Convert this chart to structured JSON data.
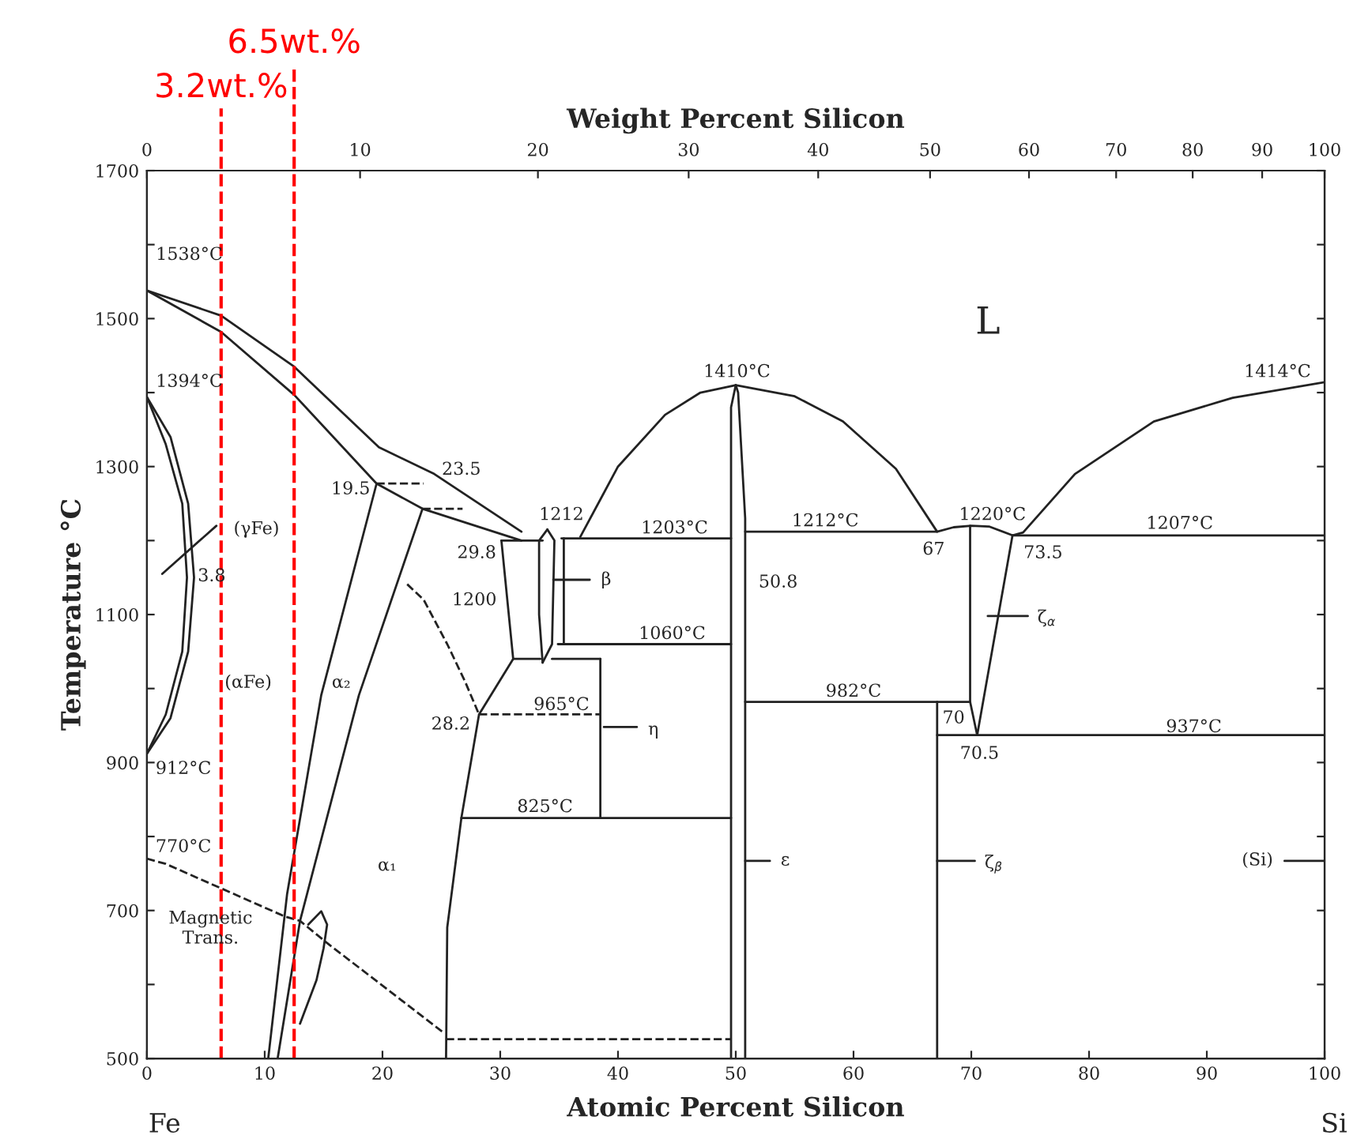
{
  "chart_data": {
    "type": "line",
    "xlabel": "Atomic Percent Silicon",
    "x2label": "Weight Percent Silicon",
    "ylabel": "Temperature °C",
    "xlim": [
      0,
      100
    ],
    "xticks": [
      0,
      10,
      20,
      30,
      40,
      50,
      60,
      70,
      80,
      90,
      100
    ],
    "ylim": [
      500,
      1700
    ],
    "yticks": [
      500,
      {
        "value": 600,
        "label": null
      },
      700,
      {
        "value": 800,
        "label": null
      },
      900,
      {
        "value": 1000,
        "label": null
      },
      1100,
      {
        "value": 1200,
        "label": null
      },
      1300,
      {
        "value": 1400,
        "label": null
      },
      1500,
      {
        "value": 1600,
        "label": null
      },
      1700
    ],
    "grid": false,
    "legend": false,
    "marker": "none",
    "series": [
      {
        "color": "#222222",
        "line_style": "solid",
        "x": [
          0,
          6.3,
          12.5,
          19.7,
          24.4,
          31.8
        ],
        "values": [
          1538,
          1504,
          1435,
          1326,
          1290,
          1212
        ]
      },
      {
        "color": "#222222",
        "line_style": "solid",
        "x": [
          0,
          6.3,
          12.5,
          19.5,
          23.4,
          31.8
        ],
        "values": [
          1538,
          1482,
          1397,
          1277,
          1243,
          1200
        ]
      },
      {
        "color": "#222222",
        "line_style": "solid",
        "x": [
          0,
          2,
          3.5,
          4.0,
          3.5,
          2,
          0
        ],
        "values": [
          1394,
          1340,
          1250,
          1150,
          1050,
          960,
          912
        ]
      },
      {
        "color": "#222222",
        "line_style": "solid",
        "x": [
          0,
          1.6,
          3.0,
          3.4,
          3.0,
          1.6,
          0
        ],
        "values": [
          1394,
          1330,
          1250,
          1150,
          1050,
          965,
          912
        ]
      },
      {
        "color": "#222222",
        "line_style": "solid",
        "x": [
          19.5,
          14.8,
          11.9,
          10.3
        ],
        "values": [
          1277,
          991,
          722,
          500
        ]
      },
      {
        "color": "#222222",
        "line_style": "solid",
        "x": [
          23.4,
          18.0,
          13.0,
          11.1
        ],
        "values": [
          1243,
          991,
          686,
          500
        ]
      },
      {
        "color": "#222222",
        "line_style": "solid",
        "x": [
          13.7,
          14.8,
          15.3,
          15.0,
          14.4,
          13.0
        ],
        "values": [
          681,
          699,
          681,
          649,
          606,
          547
        ]
      },
      {
        "color": "#222222",
        "line_style": "dashed",
        "x": [
          19.5,
          23.5
        ],
        "values": [
          1277,
          1277
        ]
      },
      {
        "color": "#222222",
        "line_style": "dashed",
        "x": [
          23.4,
          26.8
        ],
        "values": [
          1243,
          1243
        ]
      },
      {
        "color": "#222222",
        "line_style": "dashed",
        "x": [
          22.1,
          23.5,
          25.5,
          27.0,
          28.2
        ],
        "values": [
          1141,
          1120,
          1060,
          1010,
          965
        ]
      },
      {
        "color": "#222222",
        "line_style": "solid",
        "x": [
          30.1,
          31.1,
          28.2,
          26.7,
          25.5,
          25.4
        ],
        "values": [
          1200,
          1040,
          965,
          825,
          677,
          500
        ]
      },
      {
        "color": "#222222",
        "line_style": "solid",
        "x": [
          30.1,
          33.6
        ],
        "values": [
          1200,
          1200
        ]
      },
      {
        "color": "#222222",
        "line_style": "solid",
        "x": [
          34.0,
          33.3,
          33.3,
          33.6
        ],
        "values": [
          1215,
          1200,
          1100,
          1035
        ]
      },
      {
        "color": "#222222",
        "line_style": "solid",
        "x": [
          34.0,
          34.6,
          34.4,
          33.6
        ],
        "values": [
          1215,
          1200,
          1060,
          1035
        ]
      },
      {
        "color": "#222222",
        "line_style": "solid",
        "x": [
          35.4,
          35.4
        ],
        "values": [
          1203,
          1060
        ]
      },
      {
        "color": "#222222",
        "line_style": "solid",
        "x": [
          35.2,
          49.6
        ],
        "values": [
          1203,
          1203
        ]
      },
      {
        "color": "#222222",
        "line_style": "solid",
        "x": [
          34.9,
          49.6
        ],
        "values": [
          1060,
          1060
        ]
      },
      {
        "color": "#222222",
        "line_style": "solid",
        "x": [
          31.1,
          33.4
        ],
        "values": [
          1040,
          1040
        ]
      },
      {
        "color": "#222222",
        "line_style": "solid",
        "x": [
          34.4,
          38.5
        ],
        "values": [
          1040,
          1040
        ]
      },
      {
        "color": "#222222",
        "line_style": "solid",
        "x": [
          38.5,
          38.5
        ],
        "values": [
          1040,
          825
        ]
      },
      {
        "color": "#222222",
        "line_style": "dashed",
        "x": [
          28.2,
          38.5
        ],
        "values": [
          965,
          965
        ]
      },
      {
        "color": "#222222",
        "line_style": "solid",
        "x": [
          26.7,
          49.6
        ],
        "values": [
          825,
          825
        ]
      },
      {
        "color": "#222222",
        "line_style": "dashed",
        "x": [
          0,
          1.6,
          11.7,
          13.0,
          15.3,
          25.1
        ],
        "values": [
          770,
          763,
          692,
          686,
          656,
          536
        ]
      },
      {
        "color": "#222222",
        "line_style": "dashed",
        "x": [
          25.4,
          49.6
        ],
        "values": [
          526,
          526
        ]
      },
      {
        "color": "#222222",
        "line_style": "solid",
        "x": [
          49.6,
          49.6,
          50.0
        ],
        "values": [
          500,
          1380,
          1410
        ]
      },
      {
        "color": "#222222",
        "line_style": "solid",
        "x": [
          50.8,
          50.8,
          50.2,
          50.0
        ],
        "values": [
          500,
          1230,
          1400,
          1410
        ]
      },
      {
        "color": "#222222",
        "line_style": "solid",
        "x": [
          36.8,
          40,
          44,
          47,
          50,
          55,
          59.1,
          63.6,
          67.1
        ],
        "values": [
          1205,
          1300,
          1370,
          1400,
          1410,
          1395,
          1361,
          1297,
          1212
        ]
      },
      {
        "color": "#222222",
        "line_style": "solid",
        "x": [
          50.8,
          67.1,
          68.5,
          70,
          71.5,
          73.5,
          100
        ],
        "values": [
          1212,
          1212,
          1218,
          1220,
          1219,
          1207,
          1207
        ]
      },
      {
        "color": "#222222",
        "line_style": "solid",
        "x": [
          69.9,
          69.9,
          70.5,
          73.5
        ],
        "values": [
          1220,
          982,
          937,
          1207
        ]
      },
      {
        "color": "#222222",
        "line_style": "solid",
        "x": [
          50.8,
          69.9
        ],
        "values": [
          982,
          982
        ]
      },
      {
        "color": "#222222",
        "line_style": "solid",
        "x": [
          67.1,
          67.1
        ],
        "values": [
          982,
          500
        ]
      },
      {
        "color": "#222222",
        "line_style": "solid",
        "x": [
          67.1,
          100
        ],
        "values": [
          937,
          937
        ]
      },
      {
        "color": "#222222",
        "line_style": "solid",
        "x": [
          73.5,
          74.4,
          78.8,
          85.5,
          92.2,
          100
        ],
        "values": [
          1207,
          1211,
          1290,
          1361,
          1393,
          1414
        ]
      },
      {
        "color": "#222222",
        "line_style": "solid",
        "x": [
          1.3,
          5.9
        ],
        "values": [
          1155,
          1220
        ]
      },
      {
        "color": "#222222",
        "line_style": "solid",
        "x": [
          34.5,
          37.6
        ],
        "values": [
          1147,
          1147
        ]
      },
      {
        "color": "#222222",
        "line_style": "solid",
        "x": [
          38.8,
          41.6
        ],
        "values": [
          948,
          948
        ]
      },
      {
        "color": "#222222",
        "line_style": "solid",
        "x": [
          50.8,
          52.9
        ],
        "values": [
          767,
          767
        ]
      },
      {
        "color": "#222222",
        "line_style": "solid",
        "x": [
          71.4,
          74.8
        ],
        "values": [
          1098,
          1098
        ]
      },
      {
        "color": "#222222",
        "line_style": "solid",
        "x": [
          67.1,
          70.3
        ],
        "values": [
          767,
          767
        ]
      },
      {
        "color": "#222222",
        "line_style": "solid",
        "x": [
          96.6,
          100
        ],
        "values": [
          767,
          767
        ]
      }
    ],
    "ref_lines": [
      {
        "axis": "x",
        "value": 6.3,
        "label": "3.2wt.%",
        "color": "#ff0000",
        "line_style": "dashed"
      },
      {
        "axis": "x",
        "value": 12.5,
        "label": "6.5wt.%",
        "color": "#ff0000",
        "line_style": "dashed"
      }
    ],
    "annotations": [
      "1538°C",
      "1394°C",
      "912°C",
      "770°C",
      "3.8",
      "(γFe)",
      "(αFe)",
      "α₂",
      "α₁",
      "Magnetic\nTrans.",
      "19.5",
      "23.5",
      "29.8",
      "1200",
      "1212",
      "β",
      "1203°C",
      "1060°C",
      "965°C",
      "28.2",
      "η",
      "825°C",
      "1410°C",
      "50.8",
      "1212°C",
      "67",
      "1220°C",
      "73.5",
      "1207°C",
      "ζ$_{α}$",
      "982°C",
      "70",
      "70.5",
      "937°C",
      "1414°C",
      "L",
      "ε",
      "ζ$_{β}$",
      "(Si)",
      "Fe",
      "Si",
      "0",
      "10",
      "20",
      "30",
      "40",
      "50",
      "60",
      "70",
      "80",
      "90",
      "100"
    ]
  }
}
